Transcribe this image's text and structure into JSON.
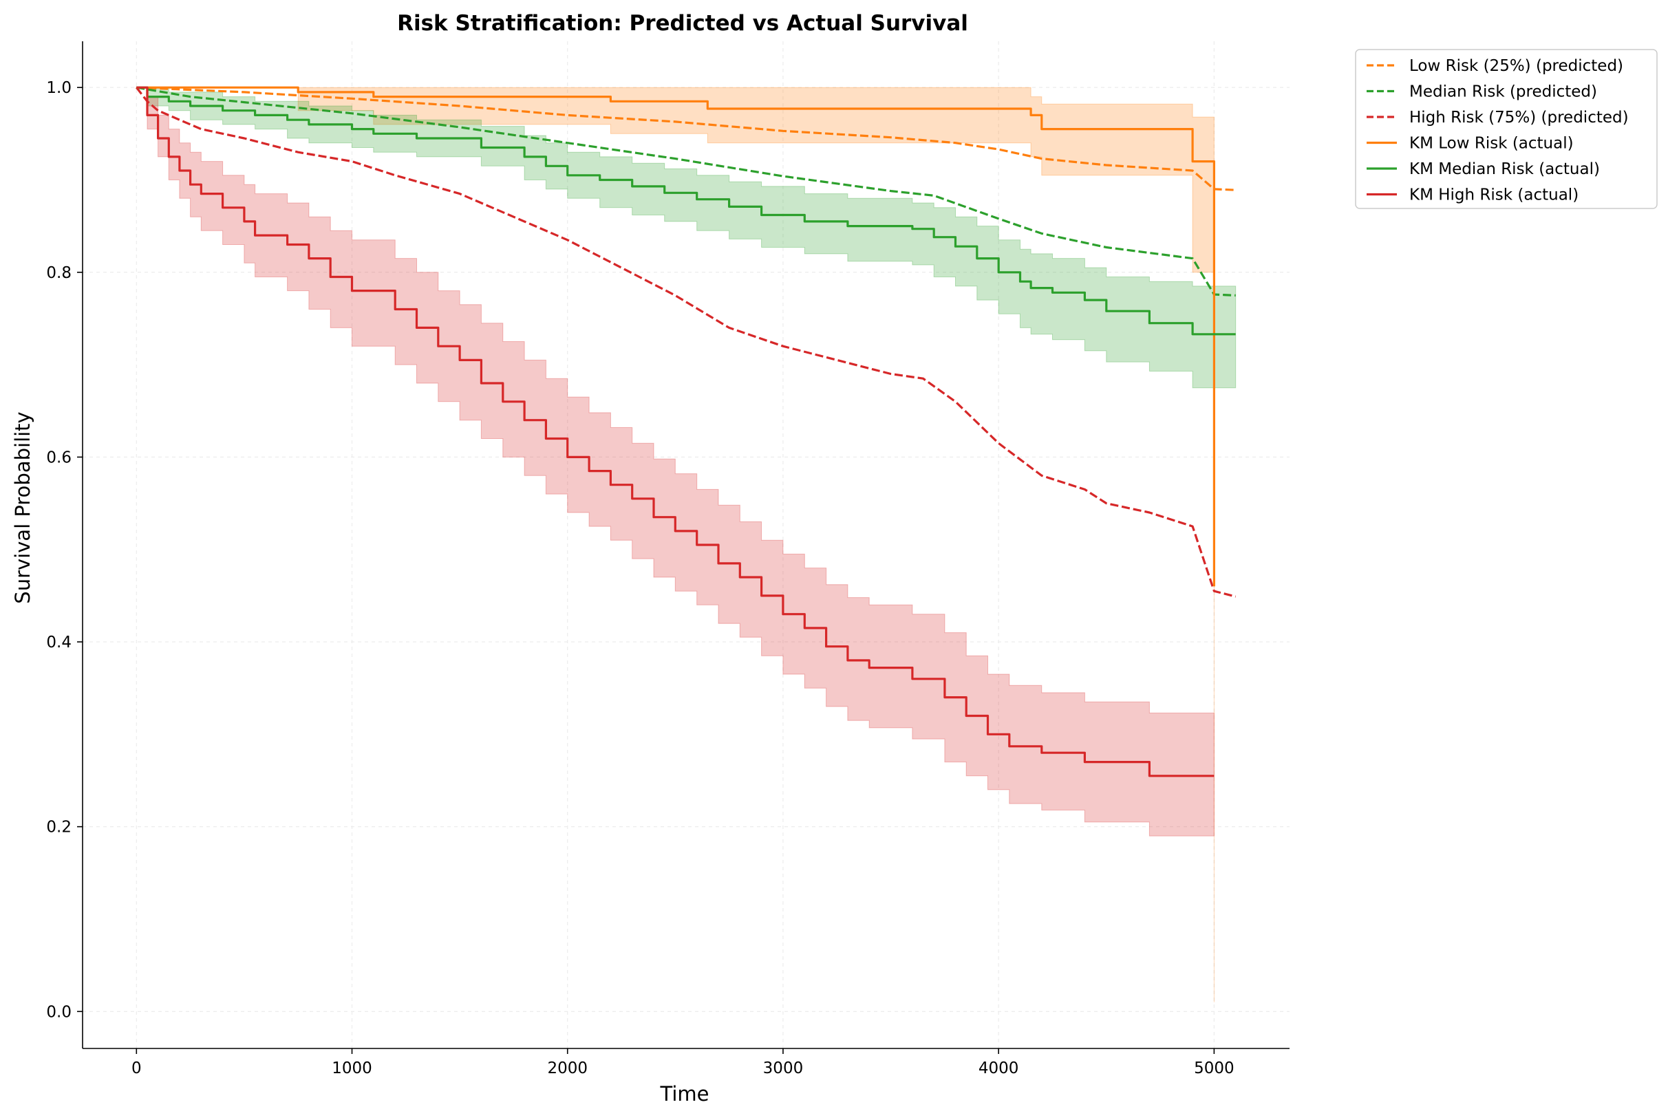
{
  "chart_data": {
    "type": "line",
    "title": "Risk Stratification: Predicted vs Actual Survival",
    "xlabel": "Time",
    "ylabel": "Survival Probability",
    "xlim": [
      -250,
      5350
    ],
    "ylim": [
      -0.04,
      1.05
    ],
    "xticks": [
      0,
      1000,
      2000,
      3000,
      4000,
      5000
    ],
    "xtick_labels": [
      "0",
      "1000",
      "2000",
      "3000",
      "4000",
      "5000"
    ],
    "yticks": [
      0.0,
      0.2,
      0.4,
      0.6,
      0.8,
      1.0
    ],
    "ytick_labels": [
      "0.0",
      "0.2",
      "0.4",
      "0.6",
      "0.8",
      "1.0"
    ],
    "grid": true,
    "legend_position": "outside-top-right",
    "legend": [
      "Low Risk (25%) (predicted)",
      "Median Risk (predicted)",
      "High Risk (75%) (predicted)",
      "KM Low Risk (actual)",
      "KM Median Risk (actual)",
      "KM High Risk (actual)"
    ],
    "colors": {
      "low": "#ff7f0e",
      "median": "#2ca02c",
      "high": "#d62728"
    },
    "series": [
      {
        "name": "Low Risk (25%) (predicted)",
        "kind": "predicted",
        "color": "#ff7f0e",
        "dash": true,
        "x": [
          0,
          500,
          1000,
          1500,
          2000,
          2500,
          3000,
          3500,
          3800,
          4000,
          4200,
          4500,
          4900,
          5000,
          5100
        ],
        "y": [
          1.0,
          0.995,
          0.988,
          0.98,
          0.97,
          0.963,
          0.953,
          0.946,
          0.94,
          0.933,
          0.923,
          0.916,
          0.91,
          0.89,
          0.889
        ]
      },
      {
        "name": "Median Risk (predicted)",
        "kind": "predicted",
        "color": "#2ca02c",
        "dash": true,
        "x": [
          0,
          250,
          500,
          750,
          1000,
          1500,
          2000,
          2500,
          3000,
          3500,
          3700,
          4000,
          4200,
          4500,
          4900,
          5000,
          5100
        ],
        "y": [
          1.0,
          0.99,
          0.984,
          0.978,
          0.972,
          0.957,
          0.94,
          0.923,
          0.904,
          0.888,
          0.883,
          0.858,
          0.842,
          0.827,
          0.815,
          0.776,
          0.775
        ]
      },
      {
        "name": "High Risk (75%) (predicted)",
        "kind": "predicted",
        "color": "#d62728",
        "dash": true,
        "x": [
          0,
          50,
          100,
          200,
          300,
          500,
          750,
          1000,
          1200,
          1500,
          1750,
          2000,
          2250,
          2500,
          2750,
          3000,
          3250,
          3500,
          3650,
          3800,
          4000,
          4200,
          4400,
          4500,
          4700,
          4900,
          5000,
          5100
        ],
        "y": [
          1.0,
          0.985,
          0.975,
          0.965,
          0.955,
          0.945,
          0.93,
          0.92,
          0.905,
          0.885,
          0.86,
          0.835,
          0.805,
          0.775,
          0.74,
          0.72,
          0.705,
          0.69,
          0.685,
          0.66,
          0.615,
          0.58,
          0.565,
          0.55,
          0.54,
          0.525,
          0.455,
          0.449
        ]
      },
      {
        "name": "KM Low Risk (actual)",
        "kind": "km",
        "color": "#ff7f0e",
        "x": [
          0,
          750,
          1100,
          2200,
          2650,
          4150,
          4200,
          4900,
          5000
        ],
        "y": [
          1.0,
          0.995,
          0.99,
          0.985,
          0.977,
          0.97,
          0.955,
          0.92,
          0.46
        ],
        "ci_lower": [
          1.0,
          0.975,
          0.96,
          0.95,
          0.94,
          0.925,
          0.905,
          0.8,
          0.01
        ],
        "ci_upper": [
          1.0,
          1.0,
          1.0,
          1.0,
          1.0,
          0.99,
          0.982,
          0.968,
          0.968
        ]
      },
      {
        "name": "KM Median Risk (actual)",
        "kind": "km",
        "color": "#2ca02c",
        "x": [
          0,
          50,
          150,
          250,
          400,
          550,
          700,
          800,
          1000,
          1100,
          1300,
          1600,
          1800,
          1900,
          2000,
          2150,
          2300,
          2450,
          2600,
          2750,
          2900,
          3100,
          3300,
          3600,
          3700,
          3800,
          3900,
          4000,
          4100,
          4150,
          4250,
          4400,
          4500,
          4700,
          4900,
          5100
        ],
        "y": [
          1.0,
          0.99,
          0.985,
          0.98,
          0.975,
          0.97,
          0.965,
          0.96,
          0.955,
          0.95,
          0.945,
          0.935,
          0.925,
          0.915,
          0.905,
          0.9,
          0.893,
          0.886,
          0.879,
          0.871,
          0.862,
          0.855,
          0.85,
          0.847,
          0.838,
          0.828,
          0.815,
          0.8,
          0.79,
          0.783,
          0.778,
          0.77,
          0.758,
          0.745,
          0.733,
          0.733
        ],
        "ci_lower": [
          1.0,
          0.98,
          0.975,
          0.965,
          0.96,
          0.955,
          0.945,
          0.94,
          0.935,
          0.93,
          0.925,
          0.915,
          0.9,
          0.89,
          0.88,
          0.87,
          0.862,
          0.855,
          0.845,
          0.836,
          0.827,
          0.82,
          0.812,
          0.808,
          0.795,
          0.785,
          0.77,
          0.755,
          0.74,
          0.733,
          0.727,
          0.715,
          0.703,
          0.693,
          0.675,
          0.675
        ],
        "ci_upper": [
          1.0,
          1.0,
          0.995,
          0.995,
          0.99,
          0.985,
          0.985,
          0.98,
          0.975,
          0.97,
          0.965,
          0.958,
          0.948,
          0.94,
          0.93,
          0.925,
          0.918,
          0.912,
          0.905,
          0.898,
          0.893,
          0.885,
          0.88,
          0.875,
          0.87,
          0.86,
          0.85,
          0.835,
          0.825,
          0.82,
          0.815,
          0.805,
          0.795,
          0.79,
          0.785,
          0.785
        ]
      },
      {
        "name": "KM High Risk (actual)",
        "kind": "km",
        "color": "#d62728",
        "x": [
          0,
          50,
          100,
          150,
          200,
          250,
          300,
          400,
          500,
          550,
          700,
          800,
          900,
          1000,
          1200,
          1300,
          1400,
          1500,
          1600,
          1700,
          1800,
          1900,
          2000,
          2100,
          2200,
          2300,
          2400,
          2500,
          2600,
          2700,
          2800,
          2900,
          3000,
          3100,
          3200,
          3300,
          3400,
          3600,
          3750,
          3850,
          3950,
          4050,
          4200,
          4400,
          4700,
          5000
        ],
        "y": [
          1.0,
          0.97,
          0.945,
          0.925,
          0.91,
          0.895,
          0.885,
          0.87,
          0.855,
          0.84,
          0.83,
          0.815,
          0.795,
          0.78,
          0.76,
          0.74,
          0.72,
          0.705,
          0.68,
          0.66,
          0.64,
          0.62,
          0.6,
          0.585,
          0.57,
          0.555,
          0.535,
          0.52,
          0.505,
          0.485,
          0.47,
          0.45,
          0.43,
          0.415,
          0.395,
          0.38,
          0.372,
          0.36,
          0.34,
          0.32,
          0.3,
          0.287,
          0.28,
          0.27,
          0.255,
          0.255
        ],
        "ci_lower": [
          1.0,
          0.955,
          0.925,
          0.9,
          0.88,
          0.86,
          0.845,
          0.83,
          0.81,
          0.795,
          0.78,
          0.76,
          0.74,
          0.72,
          0.7,
          0.68,
          0.66,
          0.64,
          0.62,
          0.6,
          0.58,
          0.56,
          0.54,
          0.525,
          0.51,
          0.49,
          0.47,
          0.455,
          0.44,
          0.42,
          0.405,
          0.385,
          0.365,
          0.35,
          0.33,
          0.315,
          0.307,
          0.295,
          0.27,
          0.255,
          0.24,
          0.225,
          0.218,
          0.205,
          0.19,
          0.19
        ],
        "ci_upper": [
          1.0,
          0.99,
          0.97,
          0.955,
          0.94,
          0.93,
          0.92,
          0.905,
          0.895,
          0.885,
          0.875,
          0.86,
          0.845,
          0.835,
          0.815,
          0.8,
          0.78,
          0.765,
          0.745,
          0.725,
          0.705,
          0.685,
          0.665,
          0.648,
          0.632,
          0.615,
          0.598,
          0.582,
          0.565,
          0.548,
          0.53,
          0.51,
          0.495,
          0.48,
          0.462,
          0.448,
          0.44,
          0.43,
          0.41,
          0.385,
          0.365,
          0.353,
          0.345,
          0.335,
          0.323,
          0.323
        ]
      }
    ]
  }
}
